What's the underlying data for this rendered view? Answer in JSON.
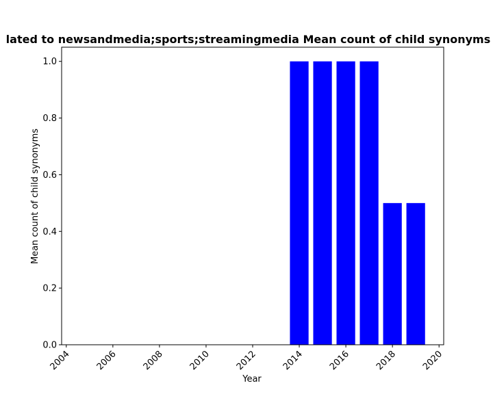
{
  "chart_data": {
    "type": "bar",
    "title": "lated to newsandmedia;sports;streamingmedia Mean count of child synonyms i",
    "xlabel": "Year",
    "ylabel": "Mean count of child synonyms",
    "xlim": [
      2003.8,
      2020.2
    ],
    "ylim": [
      0.0,
      1.05
    ],
    "x_ticks": [
      "2004",
      "2006",
      "2008",
      "2010",
      "2012",
      "2014",
      "2016",
      "2018",
      "2020"
    ],
    "y_ticks": [
      "0.0",
      "0.2",
      "0.4",
      "0.6",
      "0.8",
      "1.0"
    ],
    "categories": [
      2014,
      2015,
      2016,
      2017,
      2018,
      2019
    ],
    "values": [
      1.0,
      1.0,
      1.0,
      1.0,
      0.5,
      0.5
    ],
    "bar_color": "#0000ff",
    "grid": false,
    "legend": null
  }
}
